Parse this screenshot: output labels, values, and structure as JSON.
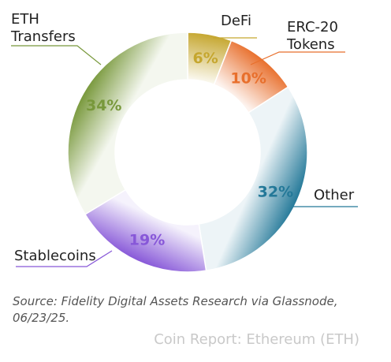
{
  "chart_data": {
    "type": "pie",
    "categories": [
      "DeFi",
      "ERC-20 Tokens",
      "Other",
      "Stablecoins",
      "ETH Transfers"
    ],
    "values": [
      6,
      10,
      32,
      19,
      34
    ],
    "value_labels": [
      "6%",
      "10%",
      "32%",
      "19%",
      "34%"
    ],
    "legend_labels": [
      [
        "DeFi"
      ],
      [
        "ERC-20",
        "Tokens"
      ],
      [
        "Other"
      ],
      [
        "Stablecoins"
      ],
      [
        "ETH",
        "Transfers"
      ]
    ],
    "colors": [
      "#c5a62e",
      "#e86f2c",
      "#237898",
      "#8757d8",
      "#78983b"
    ],
    "donut": true
  },
  "source": "Source: Fidelity Digital Assets Research via Glassnode, 06/23/25.",
  "footer": "Coin Report: Ethereum (ETH)"
}
